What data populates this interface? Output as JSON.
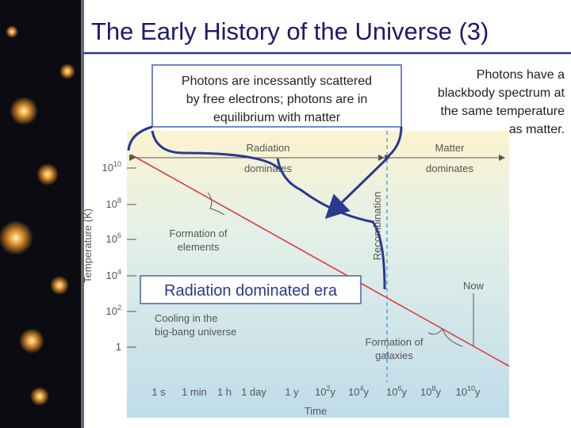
{
  "header": {
    "title": "The Early History of the Universe (3)"
  },
  "callouts": [
    {
      "lines": [
        "Photons are incessantly scattered",
        "by free electrons; photons are in",
        "equilibrium with matter"
      ]
    },
    {
      "lines": [
        "Photons have a",
        "blackbody spectrum at",
        "the same temperature",
        "as matter."
      ]
    },
    {
      "lines": [
        "Radiation dominated era"
      ]
    }
  ],
  "figure": {
    "y_axis_label": "Temperature (K)",
    "x_axis_label": "Time",
    "y_ticks": [
      {
        "base": "10",
        "exp": "10"
      },
      {
        "base": "10",
        "exp": "8"
      },
      {
        "base": "10",
        "exp": "6"
      },
      {
        "base": "10",
        "exp": "4"
      },
      {
        "base": "10",
        "exp": "2"
      },
      {
        "base": "1",
        "exp": ""
      }
    ],
    "x_ticks": [
      {
        "base": "1 s",
        "exp": "",
        "unit": ""
      },
      {
        "base": "1 min",
        "exp": "",
        "unit": ""
      },
      {
        "base": "1 h",
        "exp": "",
        "unit": ""
      },
      {
        "base": "1 day",
        "exp": "",
        "unit": ""
      },
      {
        "base": "1 y",
        "exp": "",
        "unit": ""
      },
      {
        "base": "10",
        "exp": "2",
        "unit": "y"
      },
      {
        "base": "10",
        "exp": "4",
        "unit": "y"
      },
      {
        "base": "10",
        "exp": "6",
        "unit": "y"
      },
      {
        "base": "10",
        "exp": "8",
        "unit": "y"
      },
      {
        "base": "10",
        "exp": "10",
        "unit": "y"
      }
    ],
    "annotations": {
      "radiation": [
        "Radiation",
        "dominates"
      ],
      "matter": [
        "Matter",
        "dominates"
      ],
      "recombination": "Recombination",
      "elements": [
        "Formation of",
        "elements"
      ],
      "now": "Now",
      "cooling": [
        "Cooling in the",
        "big-bang universe"
      ],
      "galaxies": [
        "Formation of",
        "galaxies"
      ]
    }
  }
}
